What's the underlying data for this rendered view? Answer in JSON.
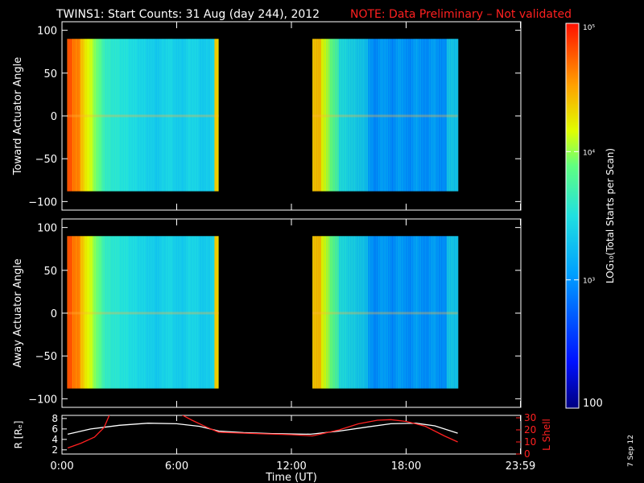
{
  "header": {
    "title": "TWINS1: Start Counts: 31 Aug (day 244), 2012",
    "note": "NOTE: Data Preliminary – Not validated",
    "note_color": "#ff2020"
  },
  "date_stamp": "7 Sep 12",
  "chart_data": [
    {
      "type": "heatmap",
      "ylabel": "Toward Actuator Angle",
      "ylim": [
        -110,
        110
      ],
      "yticks": [
        "100",
        "50",
        "0",
        "−50",
        "−100"
      ],
      "ytick_values": [
        100,
        50,
        0,
        -50,
        -100
      ],
      "x_range_hours": [
        0,
        24
      ],
      "data_intervals_hours": [
        [
          0.27,
          8.2
        ],
        [
          13.1,
          20.7
        ]
      ],
      "angle_range": [
        -88,
        90
      ]
    },
    {
      "type": "heatmap",
      "ylabel": "Away Actuator Angle",
      "ylim": [
        -110,
        110
      ],
      "yticks": [
        "100",
        "50",
        "0",
        "−50",
        "−100"
      ],
      "ytick_values": [
        100,
        50,
        0,
        -50,
        -100
      ],
      "x_range_hours": [
        0,
        24
      ],
      "data_intervals_hours": [
        [
          0.27,
          8.2
        ],
        [
          13.1,
          20.7
        ]
      ],
      "angle_range": [
        -88,
        90
      ]
    },
    {
      "type": "line",
      "ylabel_left": "R [Rₑ]",
      "ylabel_right": "L Shell",
      "y_left_ticks": [
        "8",
        "6",
        "4",
        "2"
      ],
      "y_left_tick_values": [
        8,
        6,
        4,
        2
      ],
      "y_left_lim": [
        1.2,
        8.6
      ],
      "y_right_ticks": [
        "30",
        "20",
        "10",
        "0"
      ],
      "y_right_tick_values": [
        30,
        20,
        10,
        0
      ],
      "y_right_lim": [
        0,
        32
      ],
      "xticks": [
        "0:00",
        "6:00",
        "12:00",
        "18:00",
        "23:59"
      ],
      "xtick_values": [
        0,
        6,
        12,
        18,
        23.98
      ],
      "xlabel": "Time (UT)",
      "series": [
        {
          "color": "#ffffff",
          "x": [
            0.3,
            1.5,
            3,
            4.5,
            6,
            7.2,
            8.2,
            9.5,
            11,
            13,
            14.5,
            16,
            17.2,
            18.5,
            19.5,
            20.7
          ],
          "y": [
            5.0,
            6.0,
            6.7,
            7.1,
            7.0,
            6.5,
            5.6,
            5.3,
            5.1,
            5.0,
            5.6,
            6.4,
            7.0,
            7.1,
            6.6,
            5.2
          ]
        },
        {
          "color": "#ff2020",
          "x": [
            0.3,
            1.0,
            1.7,
            2.2,
            2.5,
            6.2,
            6.8,
            7.6,
            8.2,
            10,
            12,
            13.1,
            14.5,
            15.5,
            16.5,
            17.2,
            18,
            19,
            20,
            20.7
          ],
          "y": [
            5,
            9,
            14,
            22,
            33,
            33,
            28,
            22,
            18,
            17,
            16,
            15,
            20,
            25,
            28,
            28.5,
            27,
            23,
            15,
            10
          ]
        }
      ]
    }
  ],
  "colorbar": {
    "label": "LOG₁₀(Total Starts per Scan)",
    "ticks": [
      "10⁵",
      "10⁴",
      "10³",
      "100"
    ],
    "tick_values": [
      100000,
      10000,
      1000,
      100
    ],
    "range": [
      100,
      100000
    ],
    "log_scale": true
  }
}
